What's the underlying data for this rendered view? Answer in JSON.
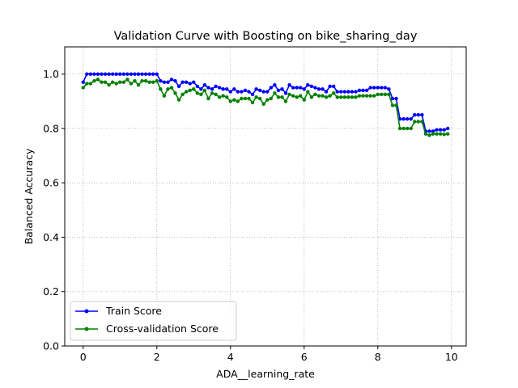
{
  "chart_data": {
    "type": "line",
    "title": "Validation Curve with Boosting on bike_sharing_day",
    "xlabel": "ADA__learning_rate",
    "ylabel": "Balanced Accuracy",
    "xlim": [
      -0.5,
      10.4
    ],
    "ylim": [
      0.0,
      1.1
    ],
    "xticks": [
      0,
      2,
      4,
      6,
      8,
      10
    ],
    "yticks": [
      0.0,
      0.2,
      0.4,
      0.6,
      0.8,
      1.0
    ],
    "xtick_labels": [
      "0",
      "2",
      "4",
      "6",
      "8",
      "10"
    ],
    "ytick_labels": [
      "0.0",
      "0.2",
      "0.4",
      "0.6",
      "0.8",
      "1.0"
    ],
    "grid": true,
    "legend_position": "lower-left",
    "x": [
      0.0,
      0.1,
      0.2,
      0.3,
      0.4,
      0.5,
      0.6,
      0.7,
      0.8,
      0.9,
      1.0,
      1.1,
      1.2,
      1.3,
      1.4,
      1.5,
      1.6,
      1.7,
      1.8,
      1.9,
      2.0,
      2.1,
      2.2,
      2.3,
      2.4,
      2.5,
      2.6,
      2.7,
      2.8,
      2.9,
      3.0,
      3.1,
      3.2,
      3.3,
      3.4,
      3.5,
      3.6,
      3.7,
      3.8,
      3.9,
      4.0,
      4.1,
      4.2,
      4.3,
      4.4,
      4.5,
      4.6,
      4.7,
      4.8,
      4.9,
      5.0,
      5.1,
      5.2,
      5.3,
      5.4,
      5.5,
      5.6,
      5.7,
      5.8,
      5.9,
      6.0,
      6.1,
      6.2,
      6.3,
      6.4,
      6.5,
      6.6,
      6.7,
      6.8,
      6.9,
      7.0,
      7.1,
      7.2,
      7.3,
      7.4,
      7.5,
      7.6,
      7.7,
      7.8,
      7.9,
      8.0,
      8.1,
      8.2,
      8.3,
      8.4,
      8.5,
      8.6,
      8.7,
      8.8,
      8.9,
      9.0,
      9.1,
      9.2,
      9.3,
      9.4,
      9.5,
      9.6,
      9.7,
      9.8,
      9.9
    ],
    "series": [
      {
        "name": "Train Score",
        "color": "#0000ff",
        "values": [
          0.97,
          1.0,
          1.0,
          1.0,
          1.0,
          1.0,
          1.0,
          1.0,
          1.0,
          1.0,
          1.0,
          1.0,
          1.0,
          1.0,
          1.0,
          1.0,
          1.0,
          1.0,
          1.0,
          1.0,
          1.0,
          0.975,
          0.97,
          0.97,
          0.98,
          0.975,
          0.955,
          0.97,
          0.97,
          0.965,
          0.97,
          0.955,
          0.945,
          0.96,
          0.95,
          0.945,
          0.955,
          0.95,
          0.945,
          0.945,
          0.935,
          0.945,
          0.935,
          0.935,
          0.94,
          0.935,
          0.925,
          0.945,
          0.94,
          0.935,
          0.935,
          0.95,
          0.96,
          0.94,
          0.945,
          0.93,
          0.96,
          0.95,
          0.95,
          0.95,
          0.945,
          0.96,
          0.955,
          0.95,
          0.945,
          0.945,
          0.935,
          0.955,
          0.955,
          0.935,
          0.935,
          0.935,
          0.935,
          0.935,
          0.935,
          0.94,
          0.94,
          0.94,
          0.95,
          0.95,
          0.95,
          0.95,
          0.95,
          0.945,
          0.91,
          0.91,
          0.835,
          0.835,
          0.835,
          0.835,
          0.85,
          0.85,
          0.85,
          0.79,
          0.79,
          0.79,
          0.795,
          0.795,
          0.795,
          0.8
        ]
      },
      {
        "name": "Cross-validation Score",
        "color": "#008000",
        "values": [
          0.95,
          0.965,
          0.965,
          0.975,
          0.98,
          0.97,
          0.97,
          0.96,
          0.97,
          0.965,
          0.97,
          0.97,
          0.98,
          0.965,
          0.975,
          0.96,
          0.975,
          0.975,
          0.97,
          0.97,
          0.975,
          0.945,
          0.92,
          0.945,
          0.95,
          0.93,
          0.905,
          0.925,
          0.935,
          0.94,
          0.945,
          0.93,
          0.925,
          0.94,
          0.91,
          0.93,
          0.925,
          0.915,
          0.92,
          0.915,
          0.9,
          0.905,
          0.9,
          0.91,
          0.91,
          0.91,
          0.895,
          0.915,
          0.91,
          0.89,
          0.905,
          0.91,
          0.93,
          0.915,
          0.915,
          0.9,
          0.925,
          0.92,
          0.915,
          0.92,
          0.905,
          0.935,
          0.915,
          0.925,
          0.92,
          0.92,
          0.915,
          0.92,
          0.93,
          0.915,
          0.915,
          0.915,
          0.915,
          0.915,
          0.915,
          0.92,
          0.92,
          0.92,
          0.92,
          0.92,
          0.925,
          0.925,
          0.925,
          0.925,
          0.885,
          0.885,
          0.8,
          0.8,
          0.8,
          0.8,
          0.825,
          0.825,
          0.825,
          0.78,
          0.775,
          0.78,
          0.78,
          0.78,
          0.778,
          0.78
        ]
      }
    ]
  }
}
